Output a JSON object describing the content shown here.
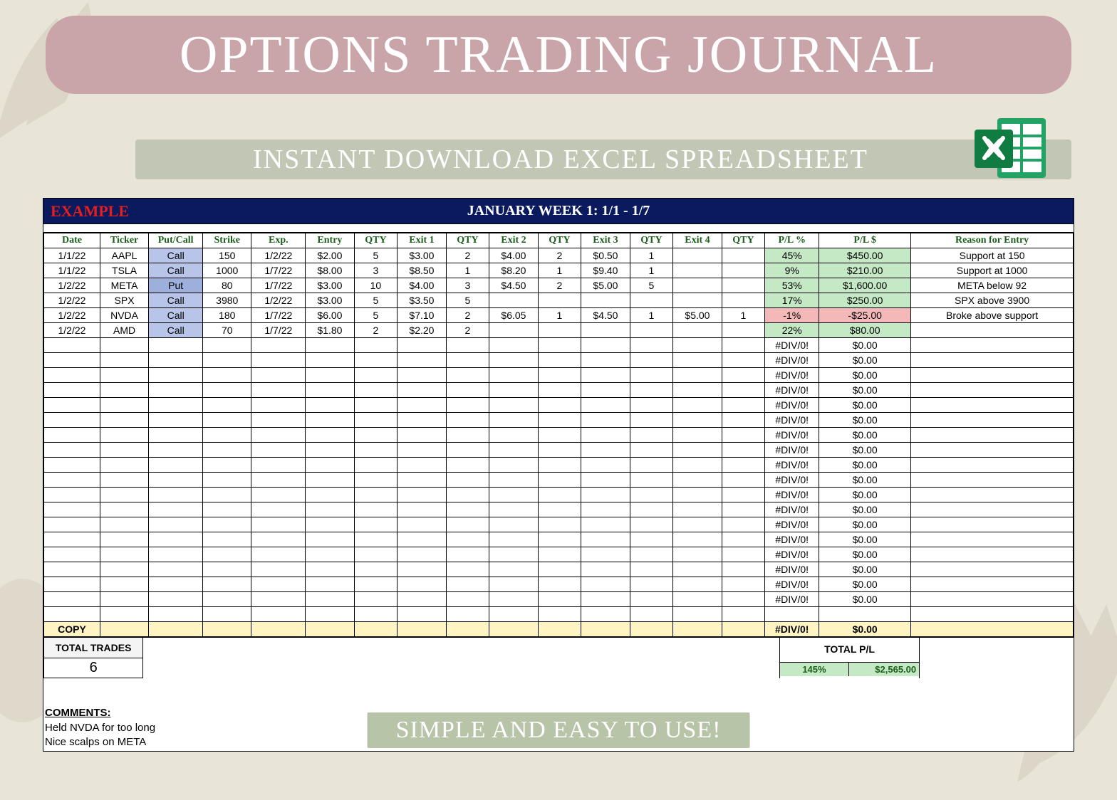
{
  "title": "OPTIONS TRADING JOURNAL",
  "subtitle": "INSTANT DOWNLOAD EXCEL SPREADSHEET",
  "footer": "SIMPLE AND EASY TO USE!",
  "header": {
    "example_label": "EXAMPLE",
    "week_label": "JANUARY WEEK 1: 1/1 - 1/7"
  },
  "columns": [
    "Date",
    "Ticker",
    "Put/Call",
    "Strike",
    "Exp.",
    "Entry",
    "QTY",
    "Exit 1",
    "QTY",
    "Exit 2",
    "QTY",
    "Exit 3",
    "QTY",
    "Exit 4",
    "QTY",
    "P/L %",
    "P/L $",
    "Reason for Entry"
  ],
  "rows": [
    {
      "date": "1/1/22",
      "ticker": "AAPL",
      "pc": "Call",
      "strike": "150",
      "exp": "1/2/22",
      "entry": "$2.00",
      "q0": "5",
      "e1": "$3.00",
      "q1": "2",
      "e2": "$4.00",
      "q2": "2",
      "e3": "$0.50",
      "q3": "1",
      "e4": "",
      "q4": "",
      "plp": "45%",
      "pls": "$450.00",
      "reason": "Support at 150",
      "neg": false
    },
    {
      "date": "1/1/22",
      "ticker": "TSLA",
      "pc": "Call",
      "strike": "1000",
      "exp": "1/7/22",
      "entry": "$8.00",
      "q0": "3",
      "e1": "$8.50",
      "q1": "1",
      "e2": "$8.20",
      "q2": "1",
      "e3": "$9.40",
      "q3": "1",
      "e4": "",
      "q4": "",
      "plp": "9%",
      "pls": "$210.00",
      "reason": "Support at 1000",
      "neg": false
    },
    {
      "date": "1/2/22",
      "ticker": "META",
      "pc": "Put",
      "strike": "80",
      "exp": "1/7/22",
      "entry": "$3.00",
      "q0": "10",
      "e1": "$4.00",
      "q1": "3",
      "e2": "$4.50",
      "q2": "2",
      "e3": "$5.00",
      "q3": "5",
      "e4": "",
      "q4": "",
      "plp": "53%",
      "pls": "$1,600.00",
      "reason": "META below 92",
      "neg": false
    },
    {
      "date": "1/2/22",
      "ticker": "SPX",
      "pc": "Call",
      "strike": "3980",
      "exp": "1/2/22",
      "entry": "$3.00",
      "q0": "5",
      "e1": "$3.50",
      "q1": "5",
      "e2": "",
      "q2": "",
      "e3": "",
      "q3": "",
      "e4": "",
      "q4": "",
      "plp": "17%",
      "pls": "$250.00",
      "reason": "SPX above 3900",
      "neg": false
    },
    {
      "date": "1/2/22",
      "ticker": "NVDA",
      "pc": "Call",
      "strike": "180",
      "exp": "1/7/22",
      "entry": "$6.00",
      "q0": "5",
      "e1": "$7.10",
      "q1": "2",
      "e2": "$6.05",
      "q2": "1",
      "e3": "$4.50",
      "q3": "1",
      "e4": "$5.00",
      "q4": "1",
      "plp": "-1%",
      "pls": "-$25.00",
      "reason": "Broke above support",
      "neg": true
    },
    {
      "date": "1/2/22",
      "ticker": "AMD",
      "pc": "Call",
      "strike": "70",
      "exp": "1/7/22",
      "entry": "$1.80",
      "q0": "2",
      "e1": "$2.20",
      "q1": "2",
      "e2": "",
      "q2": "",
      "e3": "",
      "q3": "",
      "e4": "",
      "q4": "",
      "plp": "22%",
      "pls": "$80.00",
      "reason": "",
      "neg": false
    }
  ],
  "empty_rows": 18,
  "empty_plp": "#DIV/0!",
  "empty_pls": "$0.00",
  "blank_after_empty": 1,
  "copy_row": {
    "label": "COPY",
    "plp": "#DIV/0!",
    "pls": "$0.00"
  },
  "totals": {
    "trades_label": "TOTAL TRADES",
    "trades_value": "6",
    "pl_label": "TOTAL P/L",
    "pl_pct": "145%",
    "pl_dollar": "$2,565.00"
  },
  "comments": {
    "heading": "COMMENTS:",
    "lines": [
      "Held NVDA for too long",
      "Nice scalps on META"
    ]
  },
  "colors": {
    "banner_bg": "#c9a4a8",
    "sub_bg": "#c1c7b4",
    "page_bg": "#e8e4d8",
    "hdr_bg": "#0a1a5e",
    "example_color": "#e02020",
    "th_color": "#1a5e1a",
    "call_bg": "#b8c5e8",
    "put_bg": "#9db0dc",
    "pos_bg": "#c5e8c5",
    "neg_bg": "#f4b8b8",
    "copy_bg": "#fff4c2",
    "footer_bg": "#b8c4a8",
    "excel_dark": "#107c41",
    "excel_light": "#21a366"
  }
}
